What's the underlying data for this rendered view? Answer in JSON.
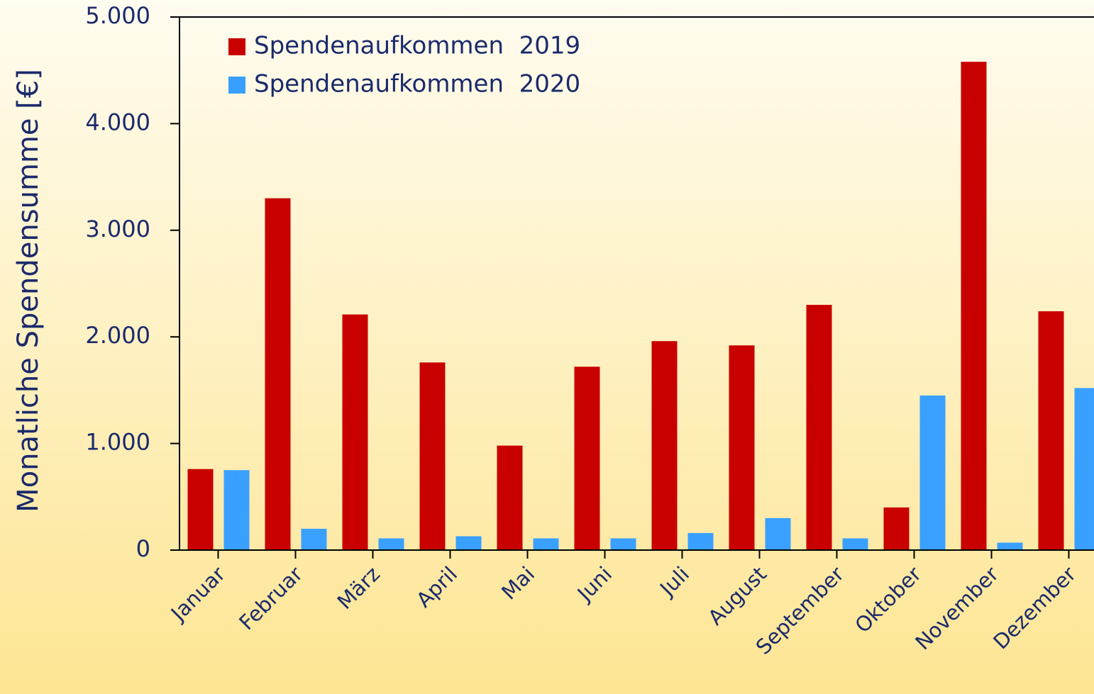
{
  "chart_data": {
    "type": "bar",
    "y_label": "Monatliche Spendensumme [€]",
    "categories": [
      "Januar",
      "Februar",
      "März",
      "April",
      "Mai",
      "Juni",
      "Juli",
      "August",
      "September",
      "Oktober",
      "November",
      "Dezember"
    ],
    "series": [
      {
        "name": "Spendenaufkommen  2019",
        "color": "#c80000",
        "values": [
          760,
          3300,
          2210,
          1760,
          980,
          1720,
          1960,
          1920,
          2300,
          400,
          4580,
          2240
        ]
      },
      {
        "name": "Spendenaufkommen  2020",
        "color": "#3aa0ff",
        "values": [
          750,
          200,
          110,
          130,
          110,
          110,
          160,
          300,
          110,
          1450,
          70,
          1520
        ]
      }
    ],
    "ylim": [
      0,
      5000
    ],
    "yticks": [
      0,
      {
        "value": 1000,
        "label": "1.000"
      },
      {
        "value": 2000,
        "label": "2.000"
      },
      {
        "value": 3000,
        "label": "3.000"
      },
      {
        "value": 4000,
        "label": "4.000"
      },
      {
        "value": 5000,
        "label": "5.000"
      }
    ],
    "grid": false,
    "legend": "upper left"
  }
}
